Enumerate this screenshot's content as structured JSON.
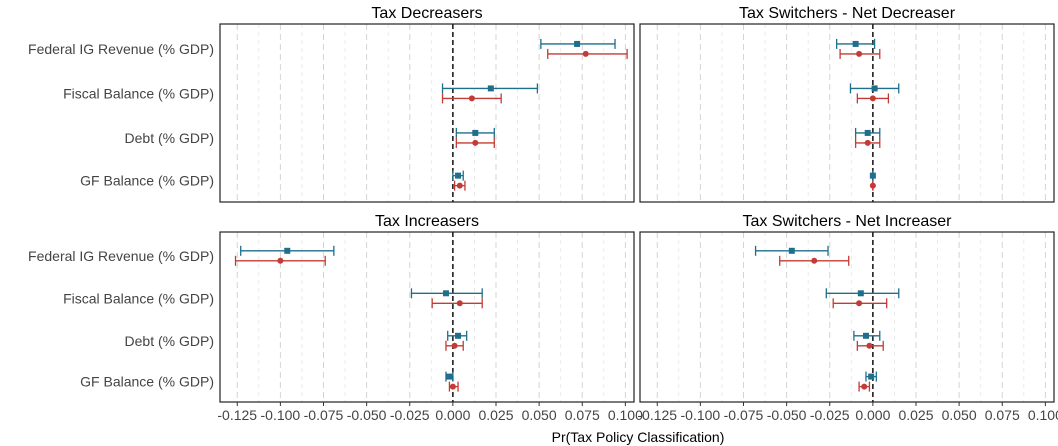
{
  "chart_data": {
    "type": "dot-errorbar",
    "xlabel": "Pr(Tax Policy Classification)",
    "xlim": [
      -0.135,
      0.105
    ],
    "xticks": [
      -0.125,
      -0.1,
      -0.075,
      -0.05,
      -0.025,
      0.0,
      0.025,
      0.05,
      0.075,
      0.1
    ],
    "xtick_labels": [
      "-0.125",
      "-0.100",
      "-0.075",
      "-0.050",
      "-0.025",
      "0.000",
      "0.025",
      "0.050",
      "0.075",
      "0.100"
    ],
    "categories": [
      "Federal IG Revenue (% GDP)",
      "Fiscal Balance (% GDP)",
      "Debt (% GDP)",
      "GF Balance (% GDP)"
    ],
    "series_colors": [
      "#1f6e8c",
      "#c23b35"
    ],
    "series_markers": [
      "square",
      "circle"
    ],
    "grid": true,
    "zero_reference_line": true,
    "panels": [
      {
        "title": "Tax Decreasers",
        "points": [
          [
            {
              "est": 0.072,
              "lo": 0.051,
              "hi": 0.094
            },
            {
              "est": 0.077,
              "lo": 0.055,
              "hi": 0.101
            }
          ],
          [
            {
              "est": 0.022,
              "lo": -0.006,
              "hi": 0.049
            },
            {
              "est": 0.011,
              "lo": -0.006,
              "hi": 0.028
            }
          ],
          [
            {
              "est": 0.013,
              "lo": 0.002,
              "hi": 0.024
            },
            {
              "est": 0.013,
              "lo": 0.002,
              "hi": 0.024
            }
          ],
          [
            {
              "est": 0.003,
              "lo": 0.0,
              "hi": 0.006
            },
            {
              "est": 0.004,
              "lo": 0.001,
              "hi": 0.007
            }
          ]
        ]
      },
      {
        "title": "Tax Switchers - Net Decreaser",
        "points": [
          [
            {
              "est": -0.01,
              "lo": -0.021,
              "hi": 0.001
            },
            {
              "est": -0.008,
              "lo": -0.019,
              "hi": 0.004
            }
          ],
          [
            {
              "est": 0.001,
              "lo": -0.013,
              "hi": 0.015
            },
            {
              "est": 0.0,
              "lo": -0.009,
              "hi": 0.009
            }
          ],
          [
            {
              "est": -0.003,
              "lo": -0.01,
              "hi": 0.004
            },
            {
              "est": -0.003,
              "lo": -0.01,
              "hi": 0.004
            }
          ],
          [
            {
              "est": 0.0,
              "lo": 0.0,
              "hi": 0.0
            },
            {
              "est": 0.0,
              "lo": 0.0,
              "hi": 0.0
            }
          ]
        ]
      },
      {
        "title": "Tax Increasers",
        "points": [
          [
            {
              "est": -0.096,
              "lo": -0.123,
              "hi": -0.069
            },
            {
              "est": -0.1,
              "lo": -0.126,
              "hi": -0.074
            }
          ],
          [
            {
              "est": -0.004,
              "lo": -0.024,
              "hi": 0.017
            },
            {
              "est": 0.004,
              "lo": -0.012,
              "hi": 0.017
            }
          ],
          [
            {
              "est": 0.003,
              "lo": -0.003,
              "hi": 0.008
            },
            {
              "est": 0.001,
              "lo": -0.004,
              "hi": 0.006
            }
          ],
          [
            {
              "est": -0.002,
              "lo": -0.004,
              "hi": 0.0
            },
            {
              "est": 0.0,
              "lo": -0.002,
              "hi": 0.003
            }
          ]
        ]
      },
      {
        "title": "Tax Switchers - Net Increaser",
        "points": [
          [
            {
              "est": -0.047,
              "lo": -0.068,
              "hi": -0.026
            },
            {
              "est": -0.034,
              "lo": -0.054,
              "hi": -0.014
            }
          ],
          [
            {
              "est": -0.007,
              "lo": -0.027,
              "hi": 0.015
            },
            {
              "est": -0.008,
              "lo": -0.023,
              "hi": 0.008
            }
          ],
          [
            {
              "est": -0.004,
              "lo": -0.011,
              "hi": 0.004
            },
            {
              "est": -0.002,
              "lo": -0.009,
              "hi": 0.006
            }
          ],
          [
            {
              "est": -0.001,
              "lo": -0.004,
              "hi": 0.002
            },
            {
              "est": -0.005,
              "lo": -0.008,
              "hi": -0.002
            }
          ]
        ]
      }
    ]
  }
}
